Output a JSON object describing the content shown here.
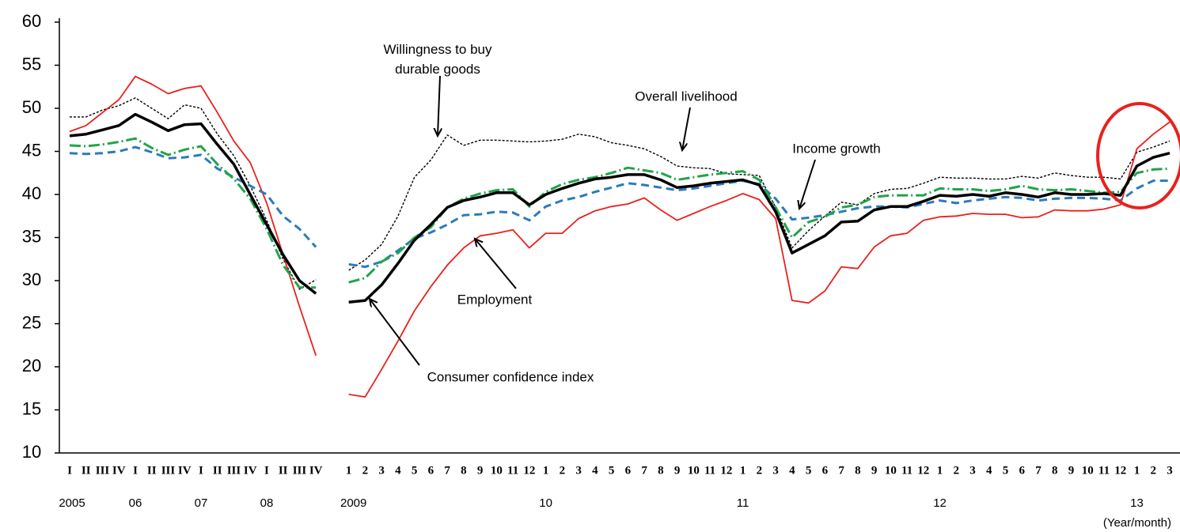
{
  "chart_data": {
    "type": "line",
    "categories": [
      "I",
      "II",
      "III",
      "IV",
      "I",
      "II",
      "III",
      "IV",
      "I",
      "II",
      "III",
      "IV",
      "I",
      "II",
      "III",
      "IV",
      null,
      "1",
      "2",
      "3",
      "4",
      "5",
      "6",
      "7",
      "8",
      "9",
      "10",
      "11",
      "12",
      "1",
      "2",
      "3",
      "4",
      "5",
      "6",
      "7",
      "8",
      "9",
      "10",
      "11",
      "12",
      "1",
      "2",
      "3",
      "4",
      "5",
      "6",
      "7",
      "8",
      "9",
      "10",
      "11",
      "12",
      "1",
      "2",
      "3",
      "4",
      "5",
      "6",
      "7",
      "8",
      "9",
      "10",
      "11",
      "12",
      "1",
      "2",
      "3"
    ],
    "year_labels": [
      "2005",
      "06",
      "07",
      "08",
      "2009",
      "10",
      "11",
      "12",
      "13"
    ],
    "x_axis_label": "(Year/month)",
    "ylim": [
      10,
      60
    ],
    "yticks": [
      10,
      15,
      20,
      25,
      30,
      35,
      40,
      45,
      50,
      55,
      60
    ],
    "series": [
      {
        "name": "Consumer confidence index",
        "color": "#000000",
        "style": "solid-thick",
        "values": [
          46.8,
          47,
          47.5,
          48,
          49.3,
          48.4,
          47.4,
          48.1,
          48.2,
          45.8,
          43.5,
          40,
          36.5,
          33,
          30,
          28.5,
          null,
          27.5,
          27.7,
          29.5,
          32,
          34.7,
          36.5,
          38.5,
          39.3,
          39.7,
          40.2,
          40.2,
          38.8,
          40,
          40.7,
          41.3,
          41.8,
          42,
          42.3,
          42.3,
          41.7,
          40.8,
          41,
          41.3,
          41.5,
          41.7,
          41.1,
          38,
          33.2,
          34.2,
          35.2,
          36.8,
          36.9,
          38.2,
          38.6,
          38.6,
          39.2,
          39.9,
          39.8,
          40,
          39.8,
          40.2,
          40,
          39.7,
          40.2,
          40,
          40,
          40.1,
          39.9,
          43.3,
          44.3,
          44.8
        ]
      },
      {
        "name": "Overall livelihood",
        "color": "#22a34a",
        "style": "dash-dot",
        "values": [
          45.7,
          45.6,
          45.8,
          46.1,
          46.5,
          45.4,
          44.6,
          45.2,
          45.6,
          43.5,
          41.8,
          39.5,
          36,
          31.8,
          29.2,
          29.2,
          null,
          29.8,
          30.3,
          32.2,
          33.2,
          35,
          36.2,
          38.5,
          39.5,
          40.1,
          40.5,
          40.6,
          38.6,
          40.3,
          41.2,
          41.7,
          42,
          42.5,
          43.1,
          42.8,
          42.5,
          41.7,
          42,
          42.3,
          42.5,
          42.7,
          41.7,
          38.5,
          35,
          36.8,
          37.4,
          38.5,
          38.8,
          39.7,
          39.9,
          39.9,
          39.9,
          40.7,
          40.6,
          40.6,
          40.4,
          40.6,
          41,
          40.6,
          40.5,
          40.6,
          40.4,
          40.2,
          40.3,
          42.5,
          42.9,
          43
        ]
      },
      {
        "name": "Income growth",
        "color": "#2b7bba",
        "style": "dashed",
        "values": [
          44.8,
          44.7,
          44.8,
          45,
          45.5,
          44.9,
          44.2,
          44.3,
          44.6,
          43,
          42,
          41,
          40,
          37.5,
          36,
          33.9,
          null,
          31.9,
          31.6,
          32.2,
          33.5,
          34.9,
          35.6,
          36.5,
          37.6,
          37.7,
          38,
          37.9,
          37,
          38.6,
          39.3,
          39.7,
          40.3,
          40.8,
          41.3,
          41.1,
          40.8,
          40.5,
          40.7,
          41,
          41.3,
          41.6,
          41.2,
          39.5,
          37.1,
          37.3,
          37.6,
          38,
          38.4,
          38.6,
          38.6,
          38.5,
          38.9,
          39.3,
          39,
          39.3,
          39.5,
          39.7,
          39.6,
          39.3,
          39.5,
          39.6,
          39.6,
          39.5,
          39.3,
          40.7,
          41.6,
          41.6
        ]
      },
      {
        "name": "Employment",
        "color": "#e8221c",
        "style": "solid-thin",
        "values": [
          47.3,
          48,
          49.5,
          51,
          53.7,
          52.8,
          51.7,
          52.3,
          52.6,
          49.5,
          46.2,
          43.7,
          39,
          33,
          27,
          21.3,
          null,
          16.8,
          16.5,
          19.7,
          23,
          26.5,
          29.3,
          31.8,
          33.8,
          35.2,
          35.5,
          35.9,
          33.8,
          35.5,
          35.5,
          37.2,
          38.1,
          38.6,
          38.9,
          39.6,
          38.2,
          37,
          37.8,
          38.6,
          39.3,
          40.1,
          39.4,
          37.2,
          27.7,
          27.4,
          28.8,
          31.6,
          31.4,
          33.9,
          35.2,
          35.5,
          37,
          37.4,
          37.5,
          37.8,
          37.7,
          37.7,
          37.3,
          37.4,
          38.2,
          38.1,
          38.1,
          38.3,
          38.8,
          45.3,
          47,
          48.4
        ]
      },
      {
        "name": "Willingness to buy durable goods",
        "color": "#000000",
        "style": "dotted",
        "values": [
          49,
          49,
          49.8,
          50.3,
          51.2,
          50,
          48.8,
          50.4,
          50,
          47,
          44.5,
          41,
          37,
          32.5,
          29,
          30.1,
          null,
          31.2,
          32.4,
          34.2,
          37.5,
          42,
          44,
          46.9,
          45.7,
          46.3,
          46.3,
          46.2,
          46.1,
          46.2,
          46.4,
          47,
          46.7,
          46,
          45.7,
          45.3,
          44.4,
          43.3,
          43.1,
          43,
          42.4,
          42.3,
          42.2,
          38.5,
          33.8,
          35.8,
          37.5,
          39.1,
          38.8,
          40.1,
          40.6,
          40.7,
          41.3,
          42,
          41.9,
          41.9,
          41.8,
          41.8,
          42.1,
          41.9,
          42.5,
          42.2,
          42,
          42,
          41.8,
          44.9,
          45.5,
          46.2
        ]
      }
    ]
  }
}
